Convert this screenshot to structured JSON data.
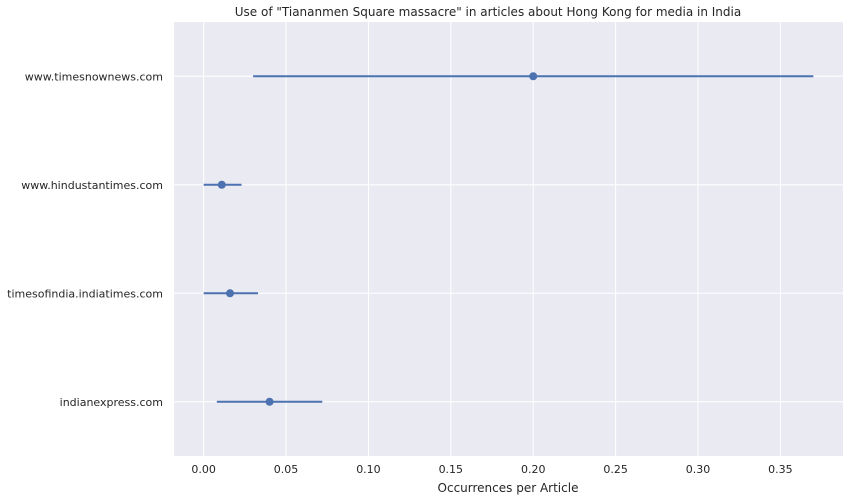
{
  "chart_data": {
    "type": "scatter",
    "title": "Use of \"Tiananmen Square massacre\" in articles about Hong Kong for media in India",
    "xlabel": "Occurrences per Article",
    "ylabel": "",
    "xlim": [
      -0.018,
      0.388
    ],
    "xticks": [
      0.0,
      0.05,
      0.1,
      0.15,
      0.2,
      0.25,
      0.3,
      0.35
    ],
    "xtick_labels": [
      "0.00",
      "0.05",
      "0.10",
      "0.15",
      "0.20",
      "0.25",
      "0.30",
      "0.35"
    ],
    "grid": true,
    "categories": [
      "www.timesnownews.com",
      "www.hindustantimes.com",
      "timesofindia.indiatimes.com",
      "indianexpress.com"
    ],
    "points": [
      {
        "label": "www.timesnownews.com",
        "value": 0.2,
        "low": 0.03,
        "high": 0.37
      },
      {
        "label": "www.hindustantimes.com",
        "value": 0.011,
        "low": 0.0,
        "high": 0.023
      },
      {
        "label": "timesofindia.indiatimes.com",
        "value": 0.016,
        "low": 0.0,
        "high": 0.033
      },
      {
        "label": "indianexpress.com",
        "value": 0.04,
        "low": 0.008,
        "high": 0.072
      }
    ],
    "colors": {
      "point": "#4c72b0",
      "background": "#eaeaf2",
      "grid": "#ffffff"
    }
  }
}
